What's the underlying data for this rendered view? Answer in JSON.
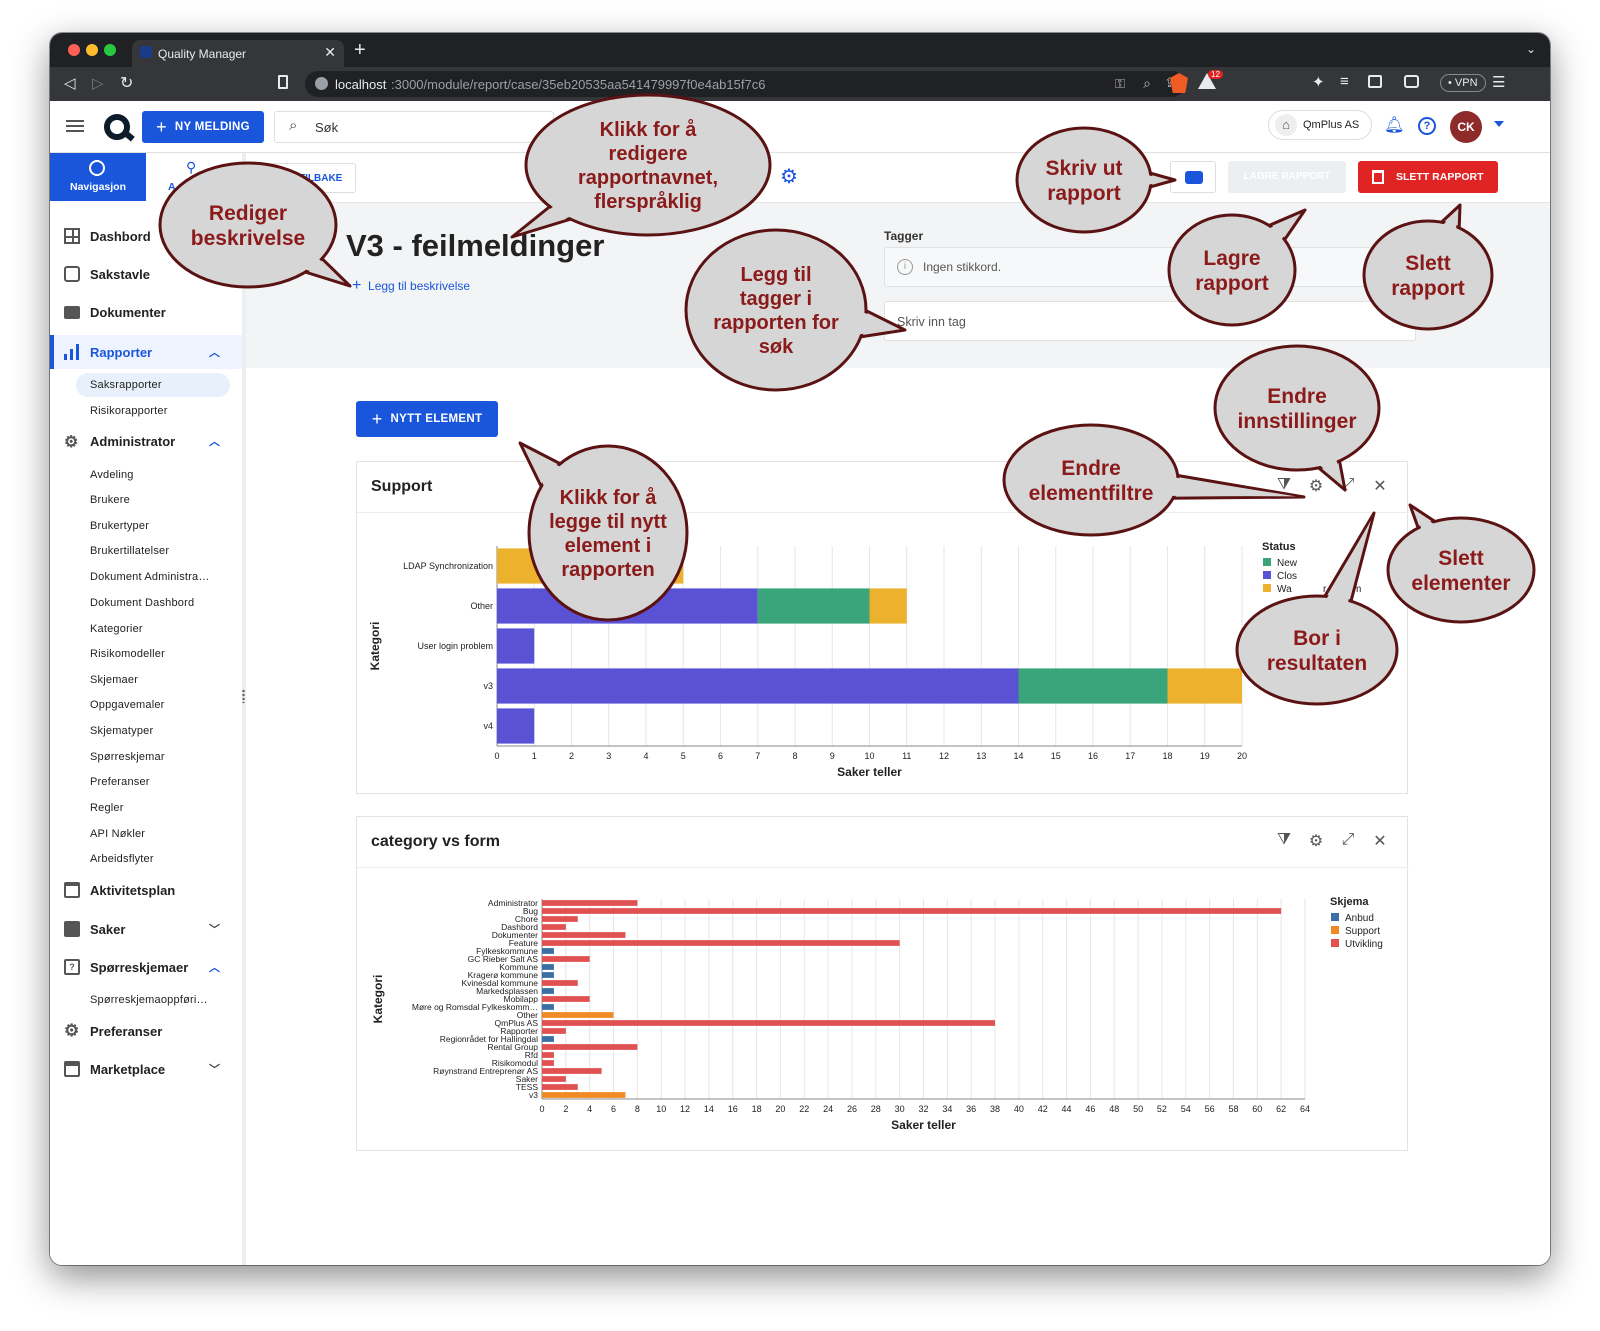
{
  "browser": {
    "tab_title": "Quality Manager",
    "url_host": "localhost",
    "url_path": ":3000/module/report/case/35eb20535aa541479997f0e4ab15f7c6",
    "badge_count": "12",
    "vpn_label": "VPN"
  },
  "topnav": {
    "new_message_label": "NY MELDING",
    "search_placeholder": "Søk",
    "company": "QmPlus AS",
    "avatar_initials": "CK"
  },
  "sidebar": {
    "tabs": [
      {
        "label": "Navigasjon"
      },
      {
        "label": "A"
      }
    ],
    "items": [
      {
        "label": "Dashbord"
      },
      {
        "label": "Sakstavle"
      },
      {
        "label": "Dokumenter"
      },
      {
        "label": "Rapporter"
      },
      {
        "label": "Administrator"
      },
      {
        "label": "Aktivitetsplan"
      },
      {
        "label": "Saker"
      },
      {
        "label": "Spørreskjemaer"
      },
      {
        "label": "Preferanser"
      },
      {
        "label": "Marketplace"
      }
    ],
    "rapporter_sub": [
      "Saksrapporter",
      "Risikorapporter"
    ],
    "admin_sub": [
      "Avdeling",
      "Brukere",
      "Brukertyper",
      "Brukertillatelser",
      "Dokument Administra…",
      "Dokument Dashbord",
      "Kategorier",
      "Risikomodeller",
      "Skjemaer",
      "Oppgavemaler",
      "Skjematyper",
      "Spørreskjemar",
      "Preferanser",
      "Regler",
      "API Nøkler",
      "Arbeidsflyter"
    ],
    "sporre_sub": [
      "Spørreskjemaoppføri…"
    ]
  },
  "toolbar": {
    "back_label": "TILBAKE",
    "save_label": "LAGRE RAPPORT",
    "delete_label": "SLETT RAPPORT"
  },
  "report": {
    "title": "V3 - feilmeldinger",
    "add_description": "Legg til beskrivelse",
    "tags_label": "Tagger",
    "no_tags": "Ingen stikkord.",
    "tag_input_placeholder": "Skriv inn tag",
    "new_element_label": "NYTT ELEMENT"
  },
  "colors": {
    "primary": "#1a56db",
    "danger": "#e02424",
    "bubble_fill": "#d6d6d6",
    "bubble_stroke": "#5a1212",
    "bubble_text": "#8b1a1a"
  },
  "annotations": {
    "edit_description": "Rediger beskrivelse",
    "edit_name": "Klikk for å redigere rapportnavnet, flerspråklig",
    "print": "Skriv ut rapport",
    "save": "Lagre rapport",
    "delete": "Slett rapport",
    "tags": "Legg til tagger i rapporten for søk",
    "settings": "Endre innstillinger",
    "filters": "Endre elementfiltre",
    "add_element": "Klikk for å legge til nytt element i rapporten",
    "delete_elements": "Slett elementer",
    "drill": "Bor i resultaten"
  },
  "chart_data": [
    {
      "type": "bar",
      "orientation": "horizontal",
      "stacked": true,
      "title": "Support",
      "xlabel": "Saker teller",
      "ylabel": "Kategori",
      "categories": [
        "LDAP Synchronization",
        "Other",
        "User login problem",
        "v3",
        "v4"
      ],
      "xlim": [
        0,
        20
      ],
      "x_ticks": [
        0,
        1,
        2,
        3,
        4,
        5,
        6,
        7,
        8,
        9,
        10,
        11,
        12,
        13,
        14,
        15,
        16,
        17,
        18,
        19,
        20
      ],
      "legend_title": "Status",
      "legend_labels": [
        "New",
        "Clos",
        "Wa",
        "r custom"
      ],
      "series": [
        {
          "color": "#5a52d5",
          "values": [
            0,
            7,
            1,
            14,
            1
          ]
        },
        {
          "color": "#3aa57a",
          "values": [
            0,
            3,
            0,
            4,
            0
          ]
        },
        {
          "color": "#ecb22e",
          "values": [
            0,
            1,
            0,
            2,
            0
          ]
        },
        {
          "color": "#ecb22e",
          "values": [
            5,
            0,
            0,
            0,
            0
          ]
        }
      ]
    },
    {
      "type": "bar",
      "orientation": "horizontal",
      "stacked": true,
      "title": "category vs form",
      "xlabel": "Saker teller",
      "ylabel": "Kategori",
      "categories": [
        "Administrator",
        "Bug",
        "Chore",
        "Dashbord",
        "Dokumenter",
        "Feature",
        "Fylkeskommune",
        "GC Rieber Salt AS",
        "Kommune",
        "Kragerø kommune",
        "Kvinesdal kommune",
        "Markedsplassen",
        "Mobilapp",
        "Møre og Romsdal Fylkeskomm…",
        "Other",
        "QmPlus AS",
        "Rapporter",
        "Regionrådet for Hallingdal",
        "Rental Group",
        "Rfd",
        "Risikomodul",
        "Røynstrand Entreprenør AS",
        "Saker",
        "TESS",
        "v3"
      ],
      "xlim": [
        0,
        64
      ],
      "x_ticks": [
        0,
        2,
        4,
        6,
        8,
        10,
        12,
        14,
        16,
        18,
        20,
        22,
        24,
        26,
        28,
        30,
        32,
        34,
        36,
        38,
        40,
        42,
        44,
        46,
        48,
        50,
        52,
        54,
        56,
        58,
        60,
        62,
        64
      ],
      "legend_title": "Skjema",
      "series": [
        {
          "name": "Anbud",
          "color": "#3a6ea5",
          "values": [
            0,
            0,
            0,
            0,
            0,
            0,
            1,
            0,
            1,
            1,
            0,
            1,
            0,
            1,
            0,
            0,
            0,
            1,
            0,
            0,
            0,
            0,
            0,
            0,
            0
          ]
        },
        {
          "name": "Support",
          "color": "#f08a24",
          "values": [
            0,
            0,
            0,
            0,
            0,
            0,
            0,
            0,
            0,
            0,
            0,
            0,
            0,
            0,
            6,
            0,
            0,
            0,
            0,
            0,
            0,
            0,
            0,
            0,
            7
          ]
        },
        {
          "name": "Utvikling",
          "color": "#e05252",
          "values": [
            8,
            62,
            3,
            2,
            7,
            30,
            0,
            4,
            0,
            0,
            3,
            0,
            4,
            0,
            0,
            38,
            2,
            0,
            8,
            1,
            1,
            5,
            2,
            3,
            0
          ]
        }
      ]
    }
  ]
}
